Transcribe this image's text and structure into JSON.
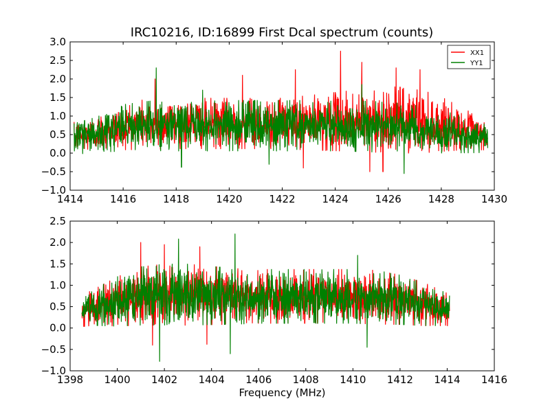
{
  "figure": {
    "title": "IRC10216, ID:16899 First Dcal spectrum (counts)"
  },
  "chart_data": [
    {
      "type": "line",
      "title": "IRC10216, ID:16899 First Dcal spectrum (counts)",
      "xlabel": "",
      "ylabel": "",
      "xlim": [
        1414,
        1430
      ],
      "ylim": [
        -1.0,
        3.0
      ],
      "x_ticks": [
        "1414",
        "1416",
        "1418",
        "1420",
        "1422",
        "1424",
        "1426",
        "1428",
        "1430"
      ],
      "y_ticks": [
        "−1.0",
        "−0.5",
        "0.0",
        "0.5",
        "1.0",
        "1.5",
        "2.0",
        "2.5",
        "3.0"
      ],
      "x_range_data": [
        1414.15,
        1429.75
      ],
      "legend": "top-right",
      "grid": false,
      "series": [
        {
          "name": "XX1",
          "color": "#ff0000",
          "envelope_x": [
            1414.15,
            1415,
            1416,
            1417,
            1418,
            1419,
            1420,
            1421,
            1422,
            1423,
            1424,
            1425,
            1426,
            1427,
            1428,
            1429,
            1429.75
          ],
          "envelope_center": [
            0.42,
            0.55,
            0.72,
            0.78,
            0.8,
            0.8,
            0.8,
            0.8,
            0.8,
            0.82,
            0.85,
            0.88,
            0.9,
            0.88,
            0.78,
            0.62,
            0.45
          ],
          "envelope_half_width": [
            0.4,
            0.45,
            0.6,
            0.65,
            0.65,
            0.65,
            0.65,
            0.65,
            0.65,
            0.7,
            0.75,
            0.8,
            0.85,
            0.85,
            0.7,
            0.5,
            0.35
          ],
          "peaks": [
            [
              1417.2,
              2.0
            ],
            [
              1420.5,
              2.1
            ],
            [
              1422.5,
              2.25
            ],
            [
              1424.2,
              2.75
            ],
            [
              1425.0,
              2.45
            ],
            [
              1426.3,
              2.3
            ],
            [
              1427.2,
              2.25
            ]
          ],
          "troughs": [
            [
              1422.8,
              -0.4
            ],
            [
              1425.3,
              -0.5
            ],
            [
              1425.8,
              -0.5
            ]
          ]
        },
        {
          "name": "YY1",
          "color": "#008000",
          "envelope_x": [
            1414.15,
            1415,
            1416,
            1417,
            1418,
            1419,
            1420,
            1421,
            1422,
            1423,
            1424,
            1425,
            1426,
            1427,
            1428,
            1429,
            1429.75
          ],
          "envelope_center": [
            0.38,
            0.5,
            0.68,
            0.72,
            0.74,
            0.74,
            0.74,
            0.74,
            0.74,
            0.74,
            0.74,
            0.72,
            0.7,
            0.66,
            0.58,
            0.48,
            0.38
          ],
          "envelope_half_width": [
            0.4,
            0.45,
            0.6,
            0.65,
            0.65,
            0.65,
            0.65,
            0.65,
            0.65,
            0.65,
            0.65,
            0.65,
            0.65,
            0.6,
            0.55,
            0.45,
            0.35
          ],
          "peaks": [
            [
              1417.25,
              2.3
            ],
            [
              1419.0,
              1.7
            ],
            [
              1425.0,
              1.85
            ]
          ],
          "troughs": [
            [
              1418.2,
              -0.38
            ],
            [
              1421.5,
              -0.3
            ],
            [
              1426.6,
              -0.55
            ]
          ]
        }
      ]
    },
    {
      "type": "line",
      "title": "",
      "xlabel": "Frequency (MHz)",
      "ylabel": "",
      "xlim": [
        1398,
        1416
      ],
      "ylim": [
        -1.0,
        2.5
      ],
      "x_ticks": [
        "1398",
        "1400",
        "1402",
        "1404",
        "1406",
        "1408",
        "1410",
        "1412",
        "1414",
        "1416"
      ],
      "y_ticks": [
        "−1.0",
        "−0.5",
        "0.0",
        "0.5",
        "1.0",
        "1.5",
        "2.0",
        "2.5"
      ],
      "x_range_data": [
        1398.5,
        1414.1
      ],
      "legend": "none",
      "grid": false,
      "series": [
        {
          "name": "",
          "color": "#ff0000",
          "envelope_x": [
            1398.5,
            1399,
            1400,
            1401,
            1402,
            1403,
            1404,
            1405,
            1406,
            1407,
            1408,
            1409,
            1410,
            1411,
            1412,
            1413,
            1414.1
          ],
          "envelope_center": [
            0.4,
            0.48,
            0.62,
            0.75,
            0.78,
            0.78,
            0.76,
            0.74,
            0.74,
            0.74,
            0.74,
            0.74,
            0.74,
            0.72,
            0.66,
            0.56,
            0.42
          ],
          "envelope_half_width": [
            0.35,
            0.4,
            0.55,
            0.65,
            0.68,
            0.68,
            0.65,
            0.62,
            0.6,
            0.6,
            0.6,
            0.6,
            0.6,
            0.6,
            0.55,
            0.48,
            0.35
          ],
          "peaks": [
            [
              1401.0,
              2.0
            ],
            [
              1402.0,
              1.95
            ],
            [
              1403.5,
              1.9
            ]
          ],
          "troughs": [
            [
              1401.5,
              -0.4
            ],
            [
              1403.8,
              -0.38
            ]
          ]
        },
        {
          "name": "",
          "color": "#008000",
          "envelope_x": [
            1398.5,
            1399,
            1400,
            1401,
            1402,
            1403,
            1404,
            1405,
            1406,
            1407,
            1408,
            1409,
            1410,
            1411,
            1412,
            1413,
            1414.1
          ],
          "envelope_center": [
            0.4,
            0.48,
            0.62,
            0.75,
            0.78,
            0.78,
            0.76,
            0.74,
            0.74,
            0.74,
            0.74,
            0.74,
            0.74,
            0.72,
            0.66,
            0.56,
            0.42
          ],
          "envelope_half_width": [
            0.35,
            0.4,
            0.55,
            0.65,
            0.68,
            0.68,
            0.65,
            0.62,
            0.6,
            0.6,
            0.6,
            0.6,
            0.6,
            0.6,
            0.55,
            0.48,
            0.35
          ],
          "peaks": [
            [
              1402.6,
              2.08
            ],
            [
              1405.0,
              2.2
            ],
            [
              1410.2,
              1.7
            ]
          ],
          "troughs": [
            [
              1401.8,
              -0.78
            ],
            [
              1404.8,
              -0.6
            ],
            [
              1410.6,
              -0.45
            ]
          ]
        }
      ]
    }
  ]
}
